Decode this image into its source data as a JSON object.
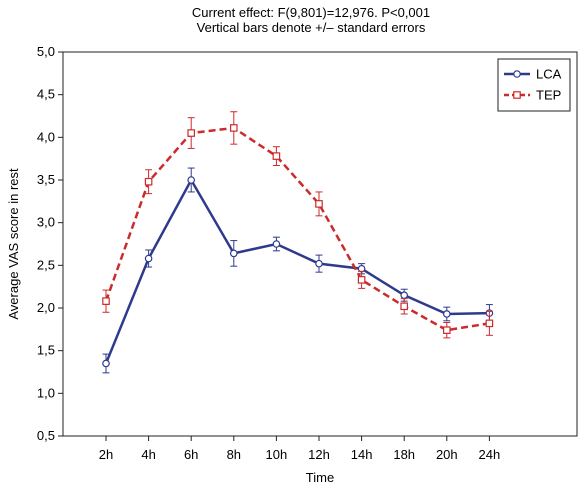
{
  "chart_data": {
    "type": "line",
    "title": "Current effect: F(9,801)=12,976. P<0,001",
    "subtitle": "Vertical bars denote +/– standard errors",
    "xlabel": "Time",
    "ylabel": "Average VAS score in rest",
    "categories": [
      "2h",
      "4h",
      "6h",
      "8h",
      "10h",
      "12h",
      "14h",
      "18h",
      "20h",
      "24h"
    ],
    "ylim": [
      0.5,
      5.0
    ],
    "yticks": [
      "0,5",
      "1,0",
      "1,5",
      "2,0",
      "2,5",
      "3,0",
      "3,5",
      "4,0",
      "4,5",
      "5,0"
    ],
    "grid": false,
    "legend_position": "top-right",
    "series": [
      {
        "name": "LCA",
        "color": "#2e3a8c",
        "line_style": "solid",
        "marker": "circle",
        "values": [
          1.35,
          2.58,
          3.5,
          2.64,
          2.75,
          2.52,
          2.46,
          2.15,
          1.93,
          1.94
        ],
        "errors": [
          0.11,
          0.1,
          0.14,
          0.15,
          0.08,
          0.1,
          0.06,
          0.07,
          0.08,
          0.1
        ]
      },
      {
        "name": "TEP",
        "color": "#cc2b2b",
        "line_style": "dashed",
        "marker": "square",
        "values": [
          2.08,
          3.48,
          4.05,
          4.11,
          3.78,
          3.22,
          2.33,
          2.02,
          1.74,
          1.82
        ],
        "errors": [
          0.13,
          0.14,
          0.18,
          0.19,
          0.11,
          0.14,
          0.1,
          0.09,
          0.09,
          0.14
        ]
      }
    ]
  }
}
